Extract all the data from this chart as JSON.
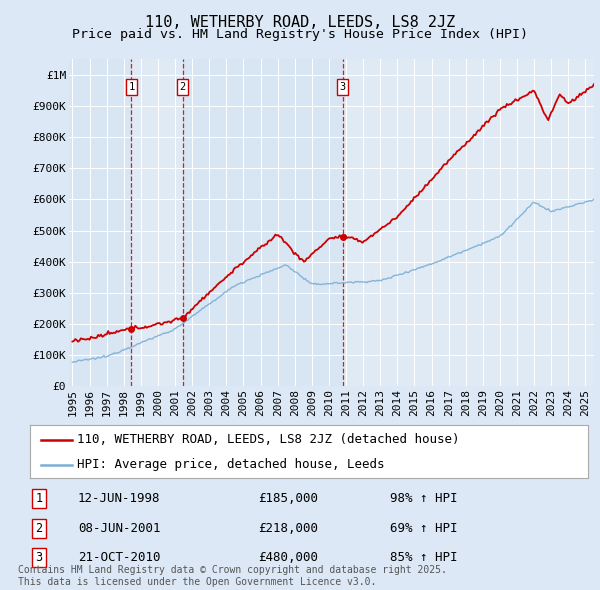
{
  "title": "110, WETHERBY ROAD, LEEDS, LS8 2JZ",
  "subtitle": "Price paid vs. HM Land Registry's House Price Index (HPI)",
  "ylabel_ticks": [
    "£0",
    "£100K",
    "£200K",
    "£300K",
    "£400K",
    "£500K",
    "£600K",
    "£700K",
    "£800K",
    "£900K",
    "£1M"
  ],
  "ytick_values": [
    0,
    100000,
    200000,
    300000,
    400000,
    500000,
    600000,
    700000,
    800000,
    900000,
    1000000
  ],
  "ylim": [
    0,
    1050000
  ],
  "xlim_start": 1994.8,
  "xlim_end": 2025.5,
  "background_color": "#dce8f5",
  "plot_bg_color": "#dce8f5",
  "grid_color": "#ffffff",
  "sale_color": "#cc0000",
  "hpi_color": "#7bafd4",
  "sale_label": "110, WETHERBY ROAD, LEEDS, LS8 2JZ (detached house)",
  "hpi_label": "HPI: Average price, detached house, Leeds",
  "transactions": [
    {
      "num": 1,
      "date": "12-JUN-1998",
      "price": 185000,
      "pct": "98%",
      "dir": "↑",
      "year": 1998.45
    },
    {
      "num": 2,
      "date": "08-JUN-2001",
      "price": 218000,
      "pct": "69%",
      "dir": "↑",
      "year": 2001.44
    },
    {
      "num": 3,
      "date": "21-OCT-2010",
      "price": 480000,
      "pct": "85%",
      "dir": "↑",
      "year": 2010.8
    }
  ],
  "footnote": "Contains HM Land Registry data © Crown copyright and database right 2025.\nThis data is licensed under the Open Government Licence v3.0.",
  "title_fontsize": 11,
  "subtitle_fontsize": 9.5,
  "tick_fontsize": 8,
  "legend_fontsize": 9,
  "table_fontsize": 9,
  "footnote_fontsize": 7
}
